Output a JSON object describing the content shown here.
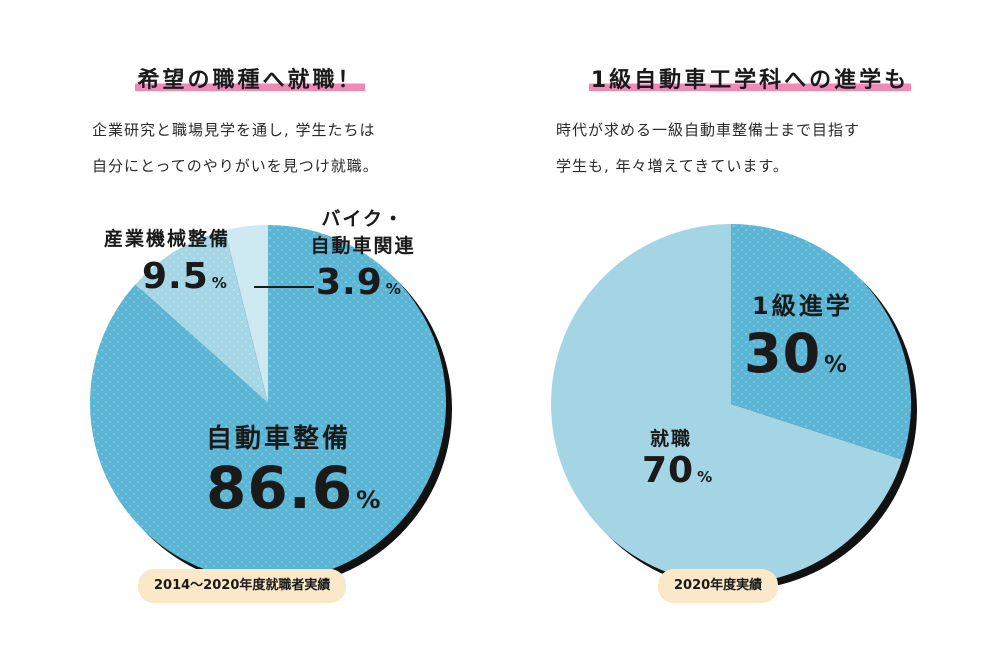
{
  "left": {
    "title": "希望の職種へ就職！",
    "desc_lines": [
      "企業研究と職場見学を通し, 学生たちは",
      "自分にとってのやりがいを見つけ就職。"
    ],
    "note": "2014〜2020年度就職者実績",
    "labels": {
      "auto": {
        "name": "自動車整備",
        "value": "86.6",
        "unit": "%"
      },
      "industrial": {
        "name": "産業機械整備",
        "value": "9.5",
        "unit": "%"
      },
      "bike": {
        "name_line1": "バイク・",
        "name_line2": "自動車関連",
        "value": "3.9",
        "unit": "%"
      }
    }
  },
  "right": {
    "title": "1級自動車工学科への進学も",
    "desc_lines": [
      "時代が求める一級自動車整備士まで目指す",
      "学生も, 年々増えてきています。"
    ],
    "note": "2020年度実績",
    "labels": {
      "advance": {
        "name": "1級進学",
        "value": "30",
        "unit": "%"
      },
      "job": {
        "name": "就職",
        "value": "70",
        "unit": "%"
      }
    }
  },
  "chart_data": [
    {
      "type": "pie",
      "title": "希望の職種へ就職！",
      "categories": [
        "自動車整備",
        "産業機械整備",
        "バイク・自動車関連"
      ],
      "values": [
        86.6,
        9.5,
        3.9
      ],
      "unit": "%",
      "colors": [
        "#5bb5d4",
        "#a4d6e6",
        "#cde9f2"
      ]
    },
    {
      "type": "pie",
      "title": "1級自動車工学科への進学も",
      "categories": [
        "1級進学",
        "就職"
      ],
      "values": [
        30,
        70
      ],
      "unit": "%",
      "colors": [
        "#5bb5d4",
        "#a3d5e5"
      ]
    }
  ]
}
